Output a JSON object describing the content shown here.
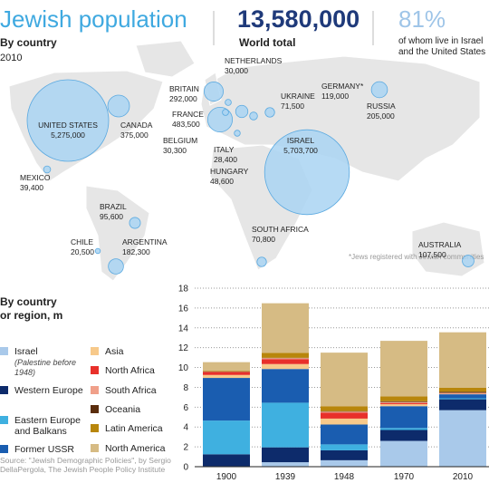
{
  "header": {
    "title": "Jewish population",
    "subtitle": "By country",
    "year": "2010",
    "total": "13,580,000",
    "total_label": "World total",
    "share": "81%",
    "share_label": "of whom live in Israel and the United States"
  },
  "map": {
    "countries": [
      "UNITED STATES",
      "CANADA",
      "MEXICO",
      "BRAZIL",
      "CHILE",
      "ARGENTINA",
      "BRITAIN",
      "NETHERLANDS",
      "FRANCE",
      "BELGIUM",
      "GERMANY*",
      "UKRAINE",
      "ITALY",
      "HUNGARY",
      "ISRAEL",
      "SOUTH AFRICA",
      "RUSSIA",
      "AUSTRALIA"
    ],
    "values": [
      5275000,
      375000,
      39400,
      95600,
      20500,
      182300,
      292000,
      30000,
      483500,
      30300,
      119000,
      71500,
      28400,
      48600,
      5703700,
      70800,
      205000,
      107500
    ],
    "value_labels": [
      "5,275,000",
      "375,000",
      "39,400",
      "95,600",
      "20,500",
      "182,300",
      "292,000",
      "30,000",
      "483,500",
      "30,300",
      "119,000",
      "71,500",
      "28,400",
      "48,600",
      "5,703,700",
      "70,800",
      "205,000",
      "107,500"
    ],
    "color": "#a9d3f2",
    "footnote": "*Jews registered with Jewish communities"
  },
  "chart_data": {
    "type": "bar",
    "stacked": true,
    "title_lines": [
      "By country",
      "or region, m"
    ],
    "categories": [
      "1900",
      "1939",
      "1948",
      "1970",
      "2010"
    ],
    "ylim": [
      0,
      18
    ],
    "yticks": [
      0,
      2,
      4,
      6,
      8,
      10,
      12,
      14,
      16,
      18
    ],
    "grid": true,
    "series": [
      {
        "name": "Israel",
        "note": "(Palestine before 1948)",
        "color": "#a9c9ea",
        "values": [
          0.05,
          0.45,
          0.65,
          2.6,
          5.7
        ]
      },
      {
        "name": "Western Europe",
        "color": "#0d2b6b",
        "values": [
          1.2,
          1.5,
          1.0,
          1.1,
          1.1
        ]
      },
      {
        "name": "Eastern Europe and Balkans",
        "color": "#3fb0e0",
        "values": [
          3.4,
          4.5,
          0.6,
          0.2,
          0.1
        ]
      },
      {
        "name": "Former USSR",
        "color": "#1a5db0",
        "values": [
          4.3,
          3.4,
          2.0,
          2.2,
          0.4
        ]
      },
      {
        "name": "Asia",
        "color": "#f7c98a",
        "values": [
          0.3,
          0.5,
          0.6,
          0.2,
          0.05
        ]
      },
      {
        "name": "North Africa",
        "color": "#e8302a",
        "values": [
          0.3,
          0.5,
          0.6,
          0.1,
          0.03
        ]
      },
      {
        "name": "South Africa",
        "color": "#f0a08a",
        "values": [
          0.02,
          0.1,
          0.1,
          0.12,
          0.07
        ]
      },
      {
        "name": "Oceania",
        "color": "#5a2d0c",
        "values": [
          0.02,
          0.03,
          0.05,
          0.07,
          0.1
        ]
      },
      {
        "name": "Latin America",
        "color": "#b8860b",
        "values": [
          0.05,
          0.5,
          0.5,
          0.5,
          0.4
        ]
      },
      {
        "name": "North America",
        "color": "#d6bb84",
        "values": [
          0.9,
          5.0,
          5.4,
          5.6,
          5.6
        ]
      }
    ]
  },
  "source": "Source: \"Jewish Demographic Policies\", by Sergio DellaPergola, The Jewish People Policy Institute"
}
